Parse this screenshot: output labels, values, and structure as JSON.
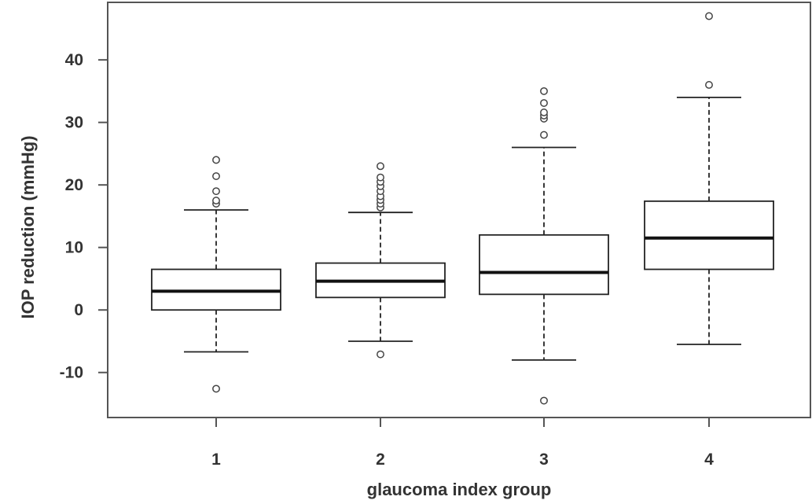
{
  "chart_data": {
    "type": "boxplot",
    "title": "",
    "xlabel": "glaucoma index group",
    "ylabel": "IOP reduction (mmHg)",
    "ylim": [
      -17.2,
      49.2
    ],
    "yticks": [
      -10,
      0,
      10,
      20,
      30,
      40
    ],
    "grid": false,
    "legend": "none",
    "categories": [
      "1",
      "2",
      "3",
      "4"
    ],
    "boxes": [
      {
        "whisker_low": -6.7,
        "q1": 0,
        "median": 3,
        "q3": 6.5,
        "whisker_high": 16,
        "outliers": [
          -12.6,
          17,
          17.5,
          19,
          21.4,
          24
        ]
      },
      {
        "whisker_low": -5,
        "q1": 2,
        "median": 4.6,
        "q3": 7.5,
        "whisker_high": 15.6,
        "outliers": [
          -7.1,
          16.4,
          17,
          17.6,
          18.2,
          19,
          19.8,
          20.5,
          21.2,
          23
        ]
      },
      {
        "whisker_low": -8,
        "q1": 2.5,
        "median": 6,
        "q3": 12,
        "whisker_high": 26,
        "outliers": [
          -14.5,
          28,
          30.6,
          31.1,
          31.6,
          33.1,
          35
        ]
      },
      {
        "whisker_low": -5.5,
        "q1": 6.5,
        "median": 11.5,
        "q3": 17.4,
        "whisker_high": 34,
        "outliers": [
          36,
          47
        ]
      }
    ]
  }
}
